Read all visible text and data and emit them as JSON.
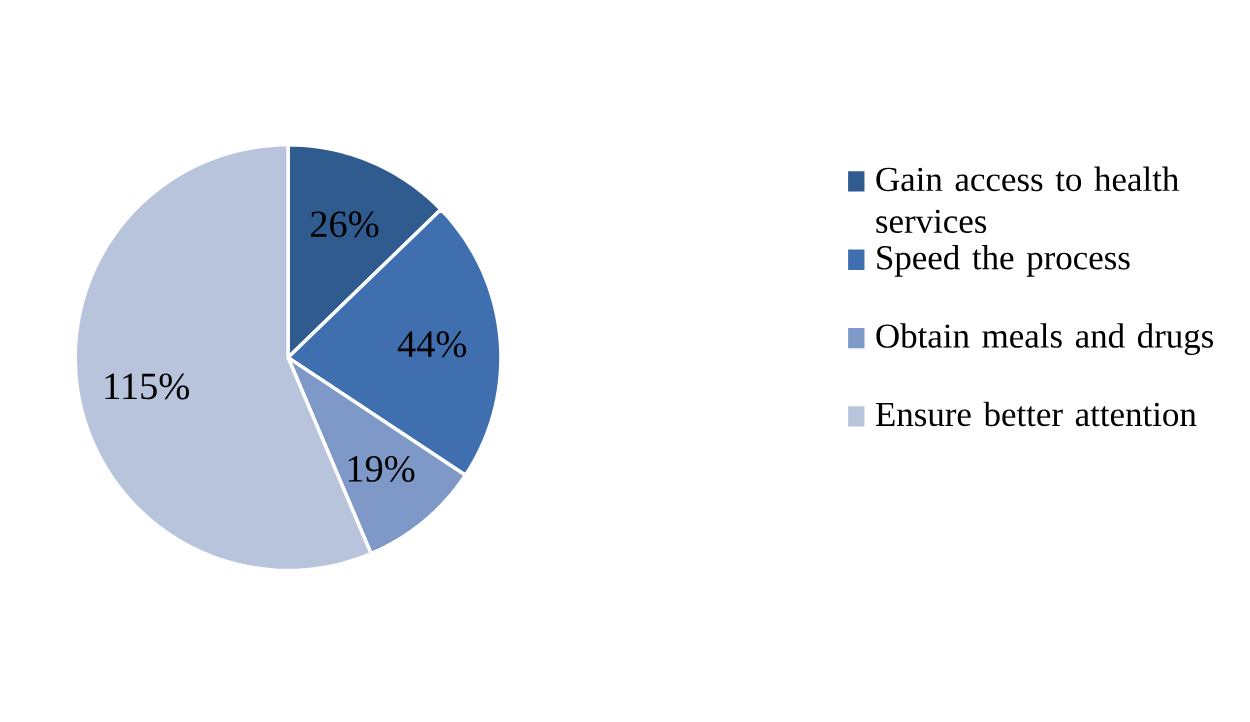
{
  "chart_data": {
    "type": "pie",
    "categories": [
      "Gain access to health services",
      "Speed the process",
      "Obtain meals and drugs",
      "Ensure better attention"
    ],
    "values": [
      26,
      44,
      19,
      115
    ],
    "value_labels": [
      "26%",
      "44%",
      "19%",
      "115%"
    ],
    "colors": [
      "#2f5b8e",
      "#3f6fae",
      "#7e98c8",
      "#b8c3dc"
    ],
    "legend": "right"
  }
}
